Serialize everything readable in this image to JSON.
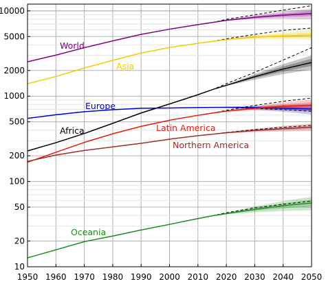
{
  "chart_data": {
    "type": "line",
    "title": "",
    "xlabel": "",
    "ylabel": "",
    "xlim": [
      1950,
      2050
    ],
    "ylim": [
      10,
      12000
    ],
    "y_scale": "log",
    "grid": true,
    "x_ticks": [
      "1950",
      "1960",
      "1970",
      "1980",
      "1990",
      "2000",
      "2010",
      "2020",
      "2030",
      "2040",
      "2050"
    ],
    "y_ticks": [
      {
        "value": 10,
        "label": "10"
      },
      {
        "value": 20,
        "label": "20"
      },
      {
        "value": 50,
        "label": "50"
      },
      {
        "value": 100,
        "label": "100"
      },
      {
        "value": 200,
        "label": "200"
      },
      {
        "value": 500,
        "label": "500"
      },
      {
        "value": 1000,
        "label": "1000"
      },
      {
        "value": 2000,
        "label": "2000"
      },
      {
        "value": 5000,
        "label": "5000"
      },
      {
        "value": 10000,
        "label": "10000"
      }
    ],
    "series": [
      {
        "name": "World",
        "color": "#800080",
        "x": [
          1950,
          1960,
          1970,
          1980,
          1990,
          2000,
          2010,
          2015
        ],
        "y": [
          2530,
          3030,
          3700,
          4450,
          5300,
          6100,
          6900,
          7300
        ],
        "projection": {
          "x": [
            2015,
            2020,
            2030,
            2040,
            2050
          ],
          "median": [
            7300,
            7750,
            8400,
            8900,
            9300
          ],
          "low": [
            7300,
            7650,
            8000,
            8100,
            8000
          ],
          "high": [
            7300,
            7900,
            8900,
            9800,
            10600
          ],
          "constant_fertility": [
            7300,
            7950,
            9000,
            10200,
            11500
          ]
        }
      },
      {
        "name": "Asia",
        "color": "#f2cc00",
        "x": [
          1950,
          1960,
          1970,
          1980,
          1990,
          2000,
          2010,
          2015
        ],
        "y": [
          1400,
          1700,
          2140,
          2630,
          3200,
          3720,
          4170,
          4390
        ],
        "projection": {
          "x": [
            2015,
            2020,
            2030,
            2040,
            2050
          ],
          "median": [
            4390,
            4600,
            4920,
            5100,
            5200
          ],
          "low": [
            4390,
            4520,
            4650,
            4650,
            4550
          ],
          "high": [
            4390,
            4680,
            5200,
            5600,
            5900
          ],
          "constant_fertility": [
            4390,
            4700,
            5300,
            5900,
            6300
          ]
        }
      },
      {
        "name": "Africa",
        "color": "#000000",
        "x": [
          1950,
          1960,
          1970,
          1980,
          1990,
          2000,
          2010,
          2015
        ],
        "y": [
          228,
          285,
          365,
          480,
          635,
          810,
          1040,
          1190
        ],
        "projection": {
          "x": [
            2015,
            2020,
            2030,
            2040,
            2050
          ],
          "median": [
            1190,
            1340,
            1690,
            2080,
            2480
          ],
          "low": [
            1190,
            1320,
            1560,
            1810,
            2050
          ],
          "high": [
            1190,
            1360,
            1820,
            2380,
            3000
          ],
          "constant_fertility": [
            1190,
            1400,
            1900,
            2650,
            3700
          ]
        }
      },
      {
        "name": "Europe",
        "color": "#0000cc",
        "x": [
          1950,
          1960,
          1970,
          1980,
          1990,
          2000,
          2010,
          2015
        ],
        "y": [
          549,
          605,
          657,
          694,
          721,
          726,
          735,
          738
        ],
        "projection": {
          "x": [
            2015,
            2020,
            2030,
            2040,
            2050
          ],
          "median": [
            738,
            740,
            735,
            722,
            707
          ],
          "low": [
            738,
            728,
            695,
            655,
            610
          ],
          "high": [
            738,
            752,
            775,
            790,
            800
          ],
          "constant_fertility": [
            738,
            738,
            720,
            695,
            665
          ]
        }
      },
      {
        "name": "Latin America",
        "color": "#e8180c",
        "x": [
          1950,
          1960,
          1970,
          1980,
          1990,
          2000,
          2010,
          2015
        ],
        "y": [
          168,
          220,
          287,
          362,
          443,
          522,
          596,
          632
        ],
        "projection": {
          "x": [
            2015,
            2020,
            2030,
            2040,
            2050
          ],
          "median": [
            632,
            668,
            720,
            760,
            780
          ],
          "low": [
            632,
            655,
            680,
            685,
            670
          ],
          "high": [
            632,
            680,
            765,
            845,
            910
          ],
          "constant_fertility": [
            632,
            682,
            780,
            870,
            950
          ]
        }
      },
      {
        "name": "Northern America",
        "color": "#a52a2a",
        "x": [
          1950,
          1960,
          1970,
          1980,
          1990,
          2000,
          2010,
          2015
        ],
        "y": [
          172,
          204,
          231,
          254,
          280,
          313,
          344,
          358
        ],
        "projection": {
          "x": [
            2015,
            2020,
            2030,
            2040,
            2050
          ],
          "median": [
            358,
            372,
            396,
            416,
            433
          ],
          "low": [
            358,
            365,
            378,
            385,
            390
          ],
          "high": [
            358,
            380,
            416,
            450,
            480
          ],
          "constant_fertility": [
            358,
            375,
            405,
            432,
            455
          ]
        }
      },
      {
        "name": "Oceania",
        "color": "#1a8c1a",
        "x": [
          1950,
          1960,
          1970,
          1980,
          1990,
          2000,
          2010,
          2015
        ],
        "y": [
          12.7,
          15.8,
          19.7,
          22.9,
          27.0,
          31.4,
          36.7,
          39.5
        ],
        "projection": {
          "x": [
            2015,
            2020,
            2030,
            2040,
            2050
          ],
          "median": [
            39.5,
            42,
            47,
            52,
            56
          ],
          "low": [
            39.5,
            41,
            43.5,
            45,
            46
          ],
          "high": [
            39.5,
            43,
            51,
            59,
            66
          ],
          "constant_fertility": [
            39.5,
            43,
            49,
            54,
            59
          ]
        }
      }
    ]
  }
}
